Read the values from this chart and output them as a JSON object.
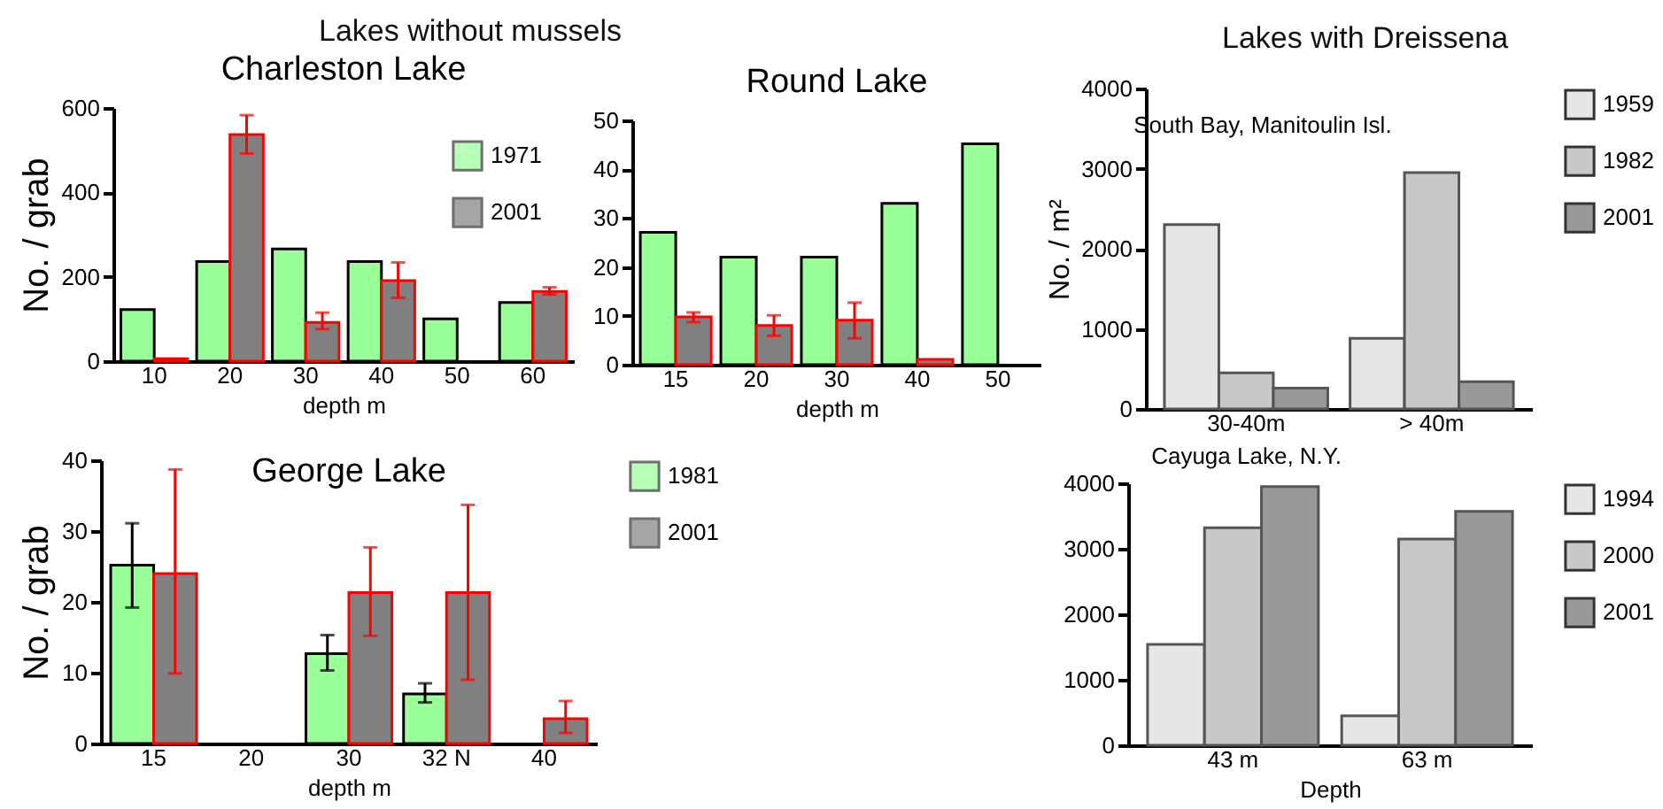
{
  "chart_data": [
    {
      "type": "bar",
      "title": "Charleston Lake",
      "annotations": [
        "Lakes without   mussels"
      ],
      "xlabel": "depth m",
      "ylabel": "No.  / grab",
      "categories": [
        "10",
        "20",
        "30",
        "40",
        "50",
        "60"
      ],
      "ylim": [
        0,
        600
      ],
      "yticks": [
        0,
        200,
        400,
        600
      ],
      "legend": "top right",
      "series": [
        {
          "name": "1971",
          "color": "#99ff99",
          "values": [
            122,
            236,
            266,
            236,
            100,
            139
          ]
        },
        {
          "name": "2001",
          "color": "#808080",
          "values": [
            6,
            537,
            92,
            191,
            null,
            165
          ],
          "errors": [
            null,
            [
              492,
              583
            ],
            [
              76,
              115
            ],
            [
              150,
              234
            ],
            null,
            [
              158,
              175
            ]
          ]
        }
      ]
    },
    {
      "type": "bar",
      "title": "Round Lake",
      "xlabel": "depth m",
      "categories": [
        "15",
        "20",
        "30",
        "40",
        "50"
      ],
      "ylim": [
        0,
        50
      ],
      "yticks": [
        0,
        10,
        20,
        30,
        40,
        50
      ],
      "series": [
        {
          "color": "#99ff99",
          "values": [
            27.1,
            22,
            22,
            33,
            45.2
          ]
        },
        {
          "color": "#808080",
          "values": [
            9.8,
            8,
            9.1,
            1.1,
            null
          ],
          "errors": [
            [
              8.7,
              10.7
            ],
            [
              5.9,
              10.1
            ],
            [
              5.4,
              12.7
            ],
            null,
            null
          ]
        }
      ]
    },
    {
      "type": "bar",
      "title": "George Lake",
      "xlabel": "depth m",
      "ylabel": "No. / grab",
      "categories": [
        "15",
        "20",
        "30",
        "32 N",
        "40"
      ],
      "ylim": [
        0,
        40
      ],
      "yticks": [
        0,
        10,
        20,
        30,
        40
      ],
      "legend": "right",
      "series": [
        {
          "name": "1981",
          "color": "#99ff99",
          "values": [
            25.2,
            null,
            12.7,
            7,
            null
          ],
          "errors": [
            [
              19.2,
              31.1
            ],
            null,
            [
              10.3,
              15.3
            ],
            [
              5.8,
              8.5
            ],
            null
          ]
        },
        {
          "name": "2001",
          "color": "#808080",
          "values": [
            24,
            null,
            21.3,
            21.3,
            3.5
          ],
          "errors": [
            [
              9.9,
              38.7
            ],
            null,
            [
              15.2,
              27.7
            ],
            [
              9,
              33.7
            ],
            [
              1.5,
              6
            ]
          ]
        }
      ]
    },
    {
      "type": "bar",
      "title": "South Bay,  Manitoulin Isl.",
      "annotations": [
        "Lakes with Dreissena"
      ],
      "ylabel": "No. / m²",
      "categories": [
        "30-40m",
        "> 40m"
      ],
      "ylim": [
        0,
        4000
      ],
      "yticks": [
        0,
        1000,
        2000,
        3000,
        4000
      ],
      "legend": "right",
      "series": [
        {
          "name": "1959",
          "color": "#e6e6e6",
          "values": [
            2300,
            880
          ]
        },
        {
          "name": "1982",
          "color": "#c8c8c8",
          "values": [
            450,
            2950
          ]
        },
        {
          "name": "2001",
          "color": "#999999",
          "values": [
            260,
            340
          ]
        }
      ]
    },
    {
      "type": "bar",
      "title": "Cayuga Lake,  N.Y.",
      "xlabel": "Depth",
      "categories": [
        "43 m",
        "63 m"
      ],
      "ylim": [
        0,
        4000
      ],
      "yticks": [
        0,
        1000,
        2000,
        3000,
        4000
      ],
      "legend": "right",
      "series": [
        {
          "name": "1994",
          "color": "#e6e6e6",
          "values": [
            1540,
            450
          ]
        },
        {
          "name": "2000",
          "color": "#c8c8c8",
          "values": [
            3320,
            3150
          ]
        },
        {
          "name": "2001",
          "color": "#999999",
          "values": [
            3950,
            3570
          ]
        }
      ]
    }
  ]
}
